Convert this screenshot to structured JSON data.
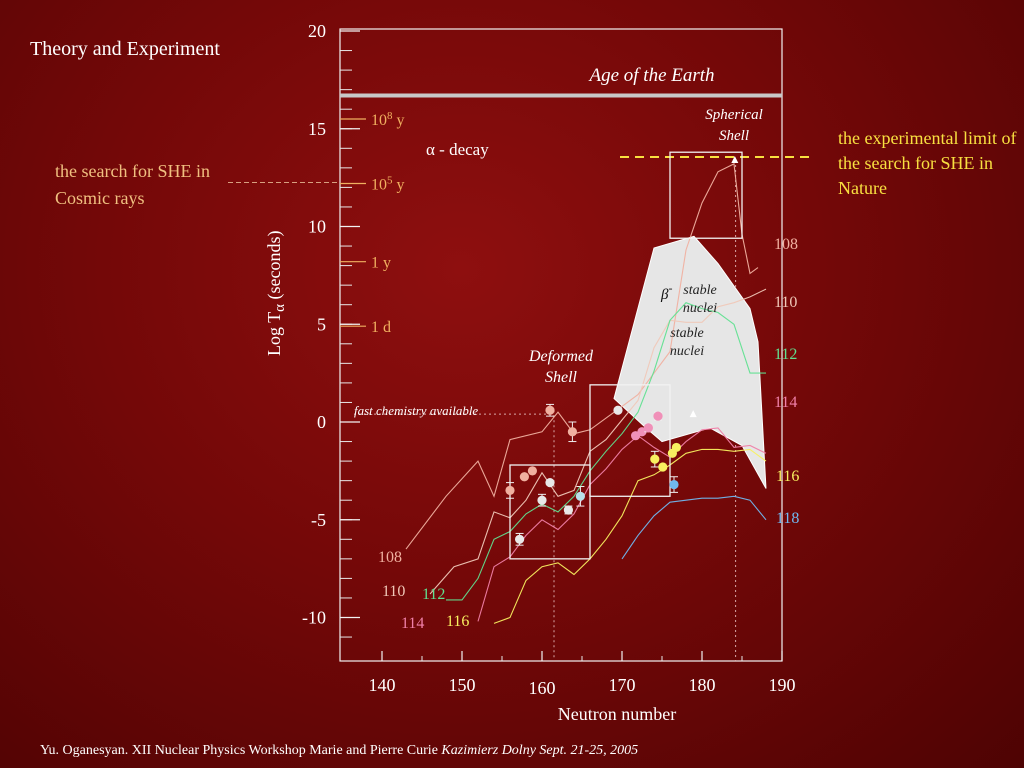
{
  "slide_title": "Theory and Experiment",
  "footer": {
    "text": "Yu. Oganesyan.  XII Nuclear Physics Workshop Marie and Pierre Curie ",
    "italic": "Kazimierz Dolny Sept. 21-25, 2005"
  },
  "notes": {
    "cosmic": "the search for SHE in Cosmic rays",
    "experimental": "the experimental limit of the search for SHE in Nature"
  },
  "colors": {
    "background": "#7a0909",
    "cosmic_note": "#f0c080",
    "experimental_note": "#f8e040",
    "age_line": "#c8c8c8",
    "z108": "#f0b0a0",
    "z110": "#f0c8b8",
    "z112": "#60e090",
    "z114": "#f080a8",
    "z116": "#f8f060",
    "z118": "#70b8f0"
  },
  "chart_data": {
    "type": "line",
    "xlabel": "Neutron number",
    "ylabel": "Log T",
    "ylabel_sub": "α",
    "ylabel_unit": "(seconds)",
    "xlim": [
      137,
      192
    ],
    "ylim": [
      -12,
      20
    ],
    "xticks": [
      {
        "value": 140,
        "label": "140"
      },
      {
        "value": 150,
        "label": "150"
      },
      {
        "value": 160,
        "label": "160"
      },
      {
        "value": 170,
        "label": "170"
      },
      {
        "value": 180,
        "label": "180"
      },
      {
        "value": 190,
        "label": "190"
      }
    ],
    "yticks": [
      {
        "value": 20,
        "label": "20"
      },
      {
        "value": 15,
        "label": "15"
      },
      {
        "value": 10,
        "label": "10"
      },
      {
        "value": 5,
        "label": "5"
      },
      {
        "value": 0,
        "label": "0"
      },
      {
        "value": -5,
        "label": "-5"
      },
      {
        "value": -10,
        "label": "-10"
      }
    ],
    "age_of_earth": {
      "value": 16.7,
      "label": "Age of the Earth"
    },
    "time_marks": [
      {
        "value": 15.5,
        "label": "10",
        "sup": "8",
        "unit": "y"
      },
      {
        "value": 12.2,
        "label": "10",
        "sup": "5",
        "unit": "y"
      },
      {
        "value": 8.2,
        "label": "1 y"
      },
      {
        "value": 4.9,
        "label": "1 d"
      }
    ],
    "alpha_decay_label": "α - decay",
    "fast_chemistry": {
      "value": 0.4,
      "label": "fast chemistry available"
    },
    "deformed_shell": {
      "label": "Deformed Shell",
      "x": [
        156,
        166
      ],
      "y": [
        -7,
        -2.2
      ]
    },
    "spherical_shell": {
      "label": "Spherical Shell",
      "x": [
        176,
        185
      ],
      "y": [
        9.4,
        13.8
      ]
    },
    "mid_box": {
      "x": [
        166,
        176
      ],
      "y": [
        -3.8,
        1.9
      ]
    },
    "stable_nuclei_labels": [
      "stable nuclei",
      "stable nuclei"
    ],
    "beta_label": "β",
    "beta_sup": "-",
    "stable_region": [
      [
        169,
        1.2
      ],
      [
        174,
        8.9
      ],
      [
        179,
        9.5
      ],
      [
        182,
        8.1
      ],
      [
        186,
        5.8
      ],
      [
        187,
        4.1
      ],
      [
        188,
        -3.4
      ],
      [
        185,
        -1.2
      ],
      [
        181,
        -0.3
      ],
      [
        175,
        -1.0
      ],
      [
        173,
        -0.3
      ],
      [
        169,
        1.2
      ]
    ],
    "experimental_limit": {
      "value": 13.4,
      "x_from": 169,
      "x_to": 190
    },
    "cosmic_ray_limit": {
      "value": 12.2
    },
    "dashed_x": [
      161.5,
      184.2
    ],
    "series": [
      {
        "name": "108",
        "color": "#f0b0a0",
        "points": [
          [
            143,
            -6.5
          ],
          [
            148,
            -3.8
          ],
          [
            152,
            -2.0
          ],
          [
            154,
            -3.8
          ],
          [
            156,
            -0.9
          ],
          [
            160,
            -0.5
          ],
          [
            162,
            0.5
          ],
          [
            164,
            -0.6
          ],
          [
            166,
            -0.4
          ],
          [
            170,
            0.8
          ],
          [
            172,
            1.4
          ],
          [
            176,
            3.6
          ],
          [
            178,
            8.8
          ],
          [
            180,
            11.2
          ],
          [
            182,
            12.8
          ],
          [
            184,
            13.2
          ],
          [
            185,
            9.6
          ],
          [
            186,
            7.6
          ],
          [
            187,
            7.9
          ]
        ]
      },
      {
        "name": "110",
        "color": "#f0c8b8",
        "points": [
          [
            146,
            -8.8
          ],
          [
            149,
            -7.4
          ],
          [
            152,
            -7.0
          ],
          [
            154,
            -4.6
          ],
          [
            156,
            -4.9
          ],
          [
            158,
            -4.0
          ],
          [
            160,
            -2.6
          ],
          [
            162,
            -3.8
          ],
          [
            164,
            -3.5
          ],
          [
            166,
            -1.5
          ],
          [
            168,
            -0.9
          ],
          [
            170,
            0.1
          ],
          [
            172,
            1.1
          ],
          [
            174,
            3.8
          ],
          [
            176,
            5.2
          ],
          [
            178,
            5.1
          ],
          [
            180,
            5.1
          ],
          [
            182,
            5.9
          ],
          [
            184,
            6.1
          ],
          [
            186,
            6.4
          ],
          [
            188,
            6.8
          ]
        ]
      },
      {
        "name": "112",
        "color": "#60e090",
        "points": [
          [
            148,
            -9.1
          ],
          [
            150,
            -9.1
          ],
          [
            152,
            -8.0
          ],
          [
            154,
            -6.0
          ],
          [
            156,
            -5.6
          ],
          [
            158,
            -4.7
          ],
          [
            160,
            -4.2
          ],
          [
            162,
            -4.6
          ],
          [
            164,
            -3.8
          ],
          [
            166,
            -2.5
          ],
          [
            168,
            -1.5
          ],
          [
            170,
            -0.6
          ],
          [
            172,
            0.5
          ],
          [
            174,
            2.6
          ],
          [
            176,
            5.2
          ],
          [
            178,
            6.1
          ],
          [
            180,
            5.8
          ],
          [
            182,
            5.6
          ],
          [
            184,
            5.0
          ],
          [
            186,
            2.5
          ],
          [
            188,
            2.5
          ]
        ]
      },
      {
        "name": "114",
        "color": "#f080a8",
        "points": [
          [
            152,
            -10.2
          ],
          [
            154,
            -7.4
          ],
          [
            156,
            -6.9
          ],
          [
            158,
            -5.8
          ],
          [
            160,
            -5.0
          ],
          [
            162,
            -5.5
          ],
          [
            164,
            -4.7
          ],
          [
            166,
            -3.2
          ],
          [
            168,
            -2.4
          ],
          [
            170,
            -1.4
          ],
          [
            172,
            -0.7
          ],
          [
            174,
            -1.3
          ],
          [
            176,
            -1.8
          ],
          [
            178,
            -1.0
          ],
          [
            180,
            -0.4
          ],
          [
            182,
            -0.3
          ],
          [
            184,
            -1.3
          ],
          [
            186,
            -1.2
          ],
          [
            188,
            -1.6
          ]
        ]
      },
      {
        "name": "116",
        "color": "#f8f060",
        "points": [
          [
            154,
            -10.3
          ],
          [
            156,
            -10.0
          ],
          [
            158,
            -8.1
          ],
          [
            160,
            -7.4
          ],
          [
            162,
            -7.2
          ],
          [
            164,
            -7.8
          ],
          [
            166,
            -7.0
          ],
          [
            168,
            -6.0
          ],
          [
            170,
            -4.8
          ],
          [
            172,
            -3.0
          ],
          [
            174,
            -2.7
          ],
          [
            176,
            -2.2
          ],
          [
            178,
            -1.6
          ],
          [
            180,
            -1.4
          ],
          [
            182,
            -1.4
          ],
          [
            184,
            -1.5
          ],
          [
            186,
            -1.4
          ],
          [
            188,
            -2.0
          ]
        ]
      },
      {
        "name": "118",
        "color": "#70b8f0",
        "points": [
          [
            170,
            -7.0
          ],
          [
            172,
            -5.8
          ],
          [
            174,
            -4.8
          ],
          [
            176,
            -4.1
          ],
          [
            178,
            -4.0
          ],
          [
            180,
            -3.9
          ],
          [
            182,
            -3.9
          ],
          [
            184,
            -3.8
          ],
          [
            186,
            -4.0
          ],
          [
            188,
            -5.0
          ]
        ]
      }
    ],
    "experimental_points": [
      {
        "x": 156,
        "y": -3.5,
        "color": "#f0b0a0",
        "err": 0.4
      },
      {
        "x": 157.8,
        "y": -2.8,
        "color": "#f0b0a0",
        "err": 0
      },
      {
        "x": 158.8,
        "y": -2.5,
        "color": "#f0b0a0",
        "err": 0
      },
      {
        "x": 161,
        "y": 0.6,
        "color": "#f0b0a0",
        "err": 0.3
      },
      {
        "x": 163.8,
        "y": -0.5,
        "color": "#f0b0a0",
        "err": 0.5
      },
      {
        "x": 157.2,
        "y": -6.0,
        "color": "#e8e8e8",
        "err": 0.3
      },
      {
        "x": 160,
        "y": -4.0,
        "color": "#e8e8e8",
        "err": 0.3
      },
      {
        "x": 161,
        "y": -3.1,
        "color": "#e8e8e8",
        "err": 0
      },
      {
        "x": 163.3,
        "y": -4.5,
        "color": "#e8e8e8",
        "err": 0.2
      },
      {
        "x": 164.8,
        "y": -3.8,
        "color": "#b8e0e8",
        "err": 0.5
      },
      {
        "x": 169.5,
        "y": 0.6,
        "color": "#e8e8e8",
        "err": 0
      },
      {
        "x": 171.7,
        "y": -0.7,
        "color": "#f090b8",
        "err": 0
      },
      {
        "x": 172.5,
        "y": -0.5,
        "color": "#f090b8",
        "err": 0
      },
      {
        "x": 173.3,
        "y": -0.3,
        "color": "#f090b8",
        "err": 0.2
      },
      {
        "x": 174.5,
        "y": 0.3,
        "color": "#f090b8",
        "err": 0.2
      },
      {
        "x": 174.1,
        "y": -1.9,
        "color": "#f8f060",
        "err": 0.4
      },
      {
        "x": 175.1,
        "y": -2.3,
        "color": "#f8f060",
        "err": 0
      },
      {
        "x": 176.3,
        "y": -1.6,
        "color": "#f8f060",
        "err": 0
      },
      {
        "x": 176.8,
        "y": -1.3,
        "color": "#f8f060",
        "err": 0
      },
      {
        "x": 176.5,
        "y": -3.2,
        "color": "#70b8f0",
        "err": 0.4
      }
    ],
    "triangle_markers": [
      {
        "x": 178.9,
        "y": 0.4
      },
      {
        "x": 184.1,
        "y": 13.4
      }
    ]
  }
}
